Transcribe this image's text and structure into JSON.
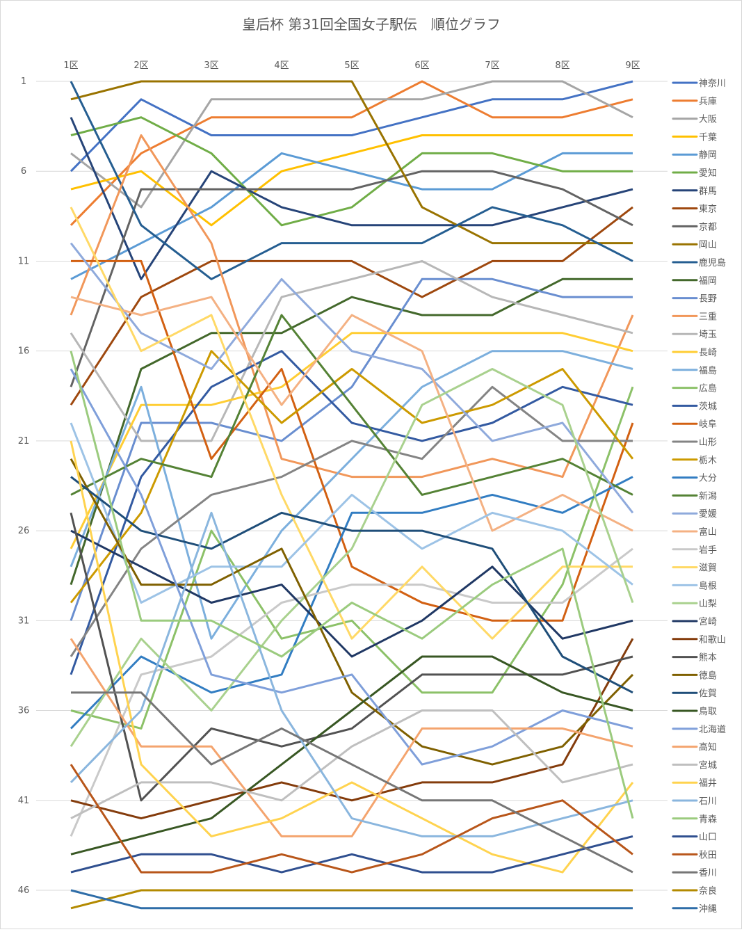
{
  "chart_data": {
    "type": "line",
    "title": "皇后杯 第31回全国女子駅伝　順位グラフ",
    "xlabel": "",
    "ylabel": "",
    "categories": [
      "1区",
      "2区",
      "3区",
      "4区",
      "5区",
      "6区",
      "7区",
      "8区",
      "9区"
    ],
    "y_ticks": [
      1,
      6,
      11,
      16,
      21,
      26,
      31,
      36,
      41,
      46
    ],
    "ylim": [
      1,
      47
    ],
    "y_reversed": true,
    "grid": true,
    "legend_position": "right",
    "series": [
      {
        "name": "神奈川",
        "color": "#4472C4",
        "values": [
          6,
          2,
          4,
          4,
          4,
          3,
          2,
          2,
          1
        ]
      },
      {
        "name": "兵庫",
        "color": "#ED7D31",
        "values": [
          9,
          5,
          3,
          3,
          3,
          1,
          3,
          3,
          2
        ]
      },
      {
        "name": "大阪",
        "color": "#A5A5A5",
        "values": [
          5,
          8,
          2,
          2,
          2,
          2,
          1,
          1,
          3
        ]
      },
      {
        "name": "千葉",
        "color": "#FFC000",
        "values": [
          7,
          6,
          9,
          6,
          5,
          4,
          4,
          4,
          4
        ]
      },
      {
        "name": "静岡",
        "color": "#5B9BD5",
        "values": [
          12,
          10,
          8,
          5,
          6,
          7,
          7,
          5,
          5
        ]
      },
      {
        "name": "愛知",
        "color": "#70AD47",
        "values": [
          4,
          3,
          5,
          9,
          8,
          5,
          5,
          6,
          6
        ]
      },
      {
        "name": "群馬",
        "color": "#264478",
        "values": [
          3,
          12,
          6,
          8,
          9,
          9,
          9,
          8,
          7
        ]
      },
      {
        "name": "東京",
        "color": "#9E480E",
        "values": [
          19,
          13,
          11,
          11,
          11,
          13,
          11,
          11,
          8
        ]
      },
      {
        "name": "京都",
        "color": "#636363",
        "values": [
          18,
          7,
          7,
          7,
          7,
          6,
          6,
          7,
          9
        ]
      },
      {
        "name": "岡山",
        "color": "#997300",
        "values": [
          2,
          1,
          1,
          1,
          1,
          8,
          10,
          10,
          10
        ]
      },
      {
        "name": "鹿児島",
        "color": "#255E91",
        "values": [
          1,
          9,
          12,
          10,
          10,
          10,
          8,
          9,
          11
        ]
      },
      {
        "name": "福岡",
        "color": "#43682B",
        "values": [
          29,
          17,
          15,
          15,
          13,
          14,
          14,
          12,
          12
        ]
      },
      {
        "name": "長野",
        "color": "#698ED0",
        "values": [
          31,
          20,
          20,
          21,
          18,
          12,
          12,
          13,
          13
        ]
      },
      {
        "name": "三重",
        "color": "#F1975A",
        "values": [
          14,
          4,
          10,
          22,
          23,
          23,
          22,
          23,
          14
        ]
      },
      {
        "name": "埼玉",
        "color": "#B7B7B7",
        "values": [
          15,
          21,
          21,
          13,
          12,
          11,
          13,
          14,
          15
        ]
      },
      {
        "name": "長崎",
        "color": "#FFCD33",
        "values": [
          27,
          19,
          19,
          18,
          15,
          15,
          15,
          15,
          16
        ]
      },
      {
        "name": "福島",
        "color": "#7CAFDD",
        "values": [
          28,
          18,
          32,
          26,
          22,
          18,
          16,
          16,
          17
        ]
      },
      {
        "name": "広島",
        "color": "#8CC168",
        "values": [
          36,
          37,
          26,
          32,
          31,
          35,
          35,
          29,
          18
        ]
      },
      {
        "name": "茨城",
        "color": "#335AA1",
        "values": [
          34,
          23,
          18,
          16,
          20,
          21,
          20,
          18,
          19
        ]
      },
      {
        "name": "岐阜",
        "color": "#D26012",
        "values": [
          11,
          11,
          22,
          17,
          28,
          30,
          31,
          31,
          20
        ]
      },
      {
        "name": "山形",
        "color": "#848484",
        "values": [
          33,
          27,
          24,
          23,
          21,
          22,
          18,
          21,
          21
        ]
      },
      {
        "name": "栃木",
        "color": "#CC9A00",
        "values": [
          30,
          25,
          16,
          20,
          17,
          20,
          19,
          17,
          22
        ]
      },
      {
        "name": "大分",
        "color": "#327DC2",
        "values": [
          37,
          33,
          35,
          34,
          25,
          25,
          24,
          25,
          23
        ]
      },
      {
        "name": "新潟",
        "color": "#548235",
        "values": [
          24,
          22,
          23,
          14,
          19,
          24,
          23,
          22,
          24
        ]
      },
      {
        "name": "愛媛",
        "color": "#8FAADC",
        "values": [
          10,
          15,
          17,
          12,
          16,
          17,
          21,
          20,
          25
        ]
      },
      {
        "name": "富山",
        "color": "#F4B183",
        "values": [
          13,
          14,
          13,
          19,
          14,
          16,
          26,
          24,
          26
        ]
      },
      {
        "name": "岩手",
        "color": "#C9C9C9",
        "values": [
          43,
          34,
          33,
          30,
          29,
          29,
          30,
          30,
          27
        ]
      },
      {
        "name": "滋賀",
        "color": "#FFD966",
        "values": [
          8,
          16,
          14,
          24,
          32,
          28,
          32,
          28,
          28
        ]
      },
      {
        "name": "島根",
        "color": "#9DC3E6",
        "values": [
          20,
          30,
          28,
          28,
          24,
          27,
          25,
          26,
          29
        ]
      },
      {
        "name": "山梨",
        "color": "#A9D18E",
        "values": [
          38,
          32,
          36,
          31,
          27,
          19,
          17,
          19,
          30
        ]
      },
      {
        "name": "宮崎",
        "color": "#203864",
        "values": [
          26,
          28,
          30,
          29,
          33,
          31,
          28,
          32,
          31
        ]
      },
      {
        "name": "和歌山",
        "color": "#843C0C",
        "values": [
          41,
          42,
          41,
          40,
          41,
          40,
          40,
          39,
          32
        ]
      },
      {
        "name": "熊本",
        "color": "#525252",
        "values": [
          25,
          41,
          37,
          38,
          37,
          34,
          34,
          34,
          33
        ]
      },
      {
        "name": "徳島",
        "color": "#7F6000",
        "values": [
          22,
          29,
          29,
          27,
          35,
          38,
          39,
          38,
          34
        ]
      },
      {
        "name": "佐賀",
        "color": "#1F4E79",
        "values": [
          23,
          26,
          27,
          25,
          26,
          26,
          27,
          33,
          35
        ]
      },
      {
        "name": "鳥取",
        "color": "#385723",
        "values": [
          44,
          43,
          42,
          39,
          36,
          33,
          33,
          35,
          36
        ]
      },
      {
        "name": "北海道",
        "color": "#7F9FDA",
        "values": [
          17,
          24,
          34,
          35,
          34,
          39,
          38,
          36,
          37
        ]
      },
      {
        "name": "高知",
        "color": "#F4A46E",
        "values": [
          32,
          38,
          38,
          43,
          43,
          37,
          37,
          37,
          38
        ]
      },
      {
        "name": "宮城",
        "color": "#BFBFBF",
        "values": [
          42,
          40,
          40,
          41,
          38,
          36,
          36,
          40,
          39
        ]
      },
      {
        "name": "福井",
        "color": "#FFD34F",
        "values": [
          21,
          39,
          43,
          42,
          40,
          42,
          44,
          45,
          40
        ]
      },
      {
        "name": "石川",
        "color": "#8AB6DE",
        "values": [
          40,
          36,
          25,
          36,
          42,
          43,
          43,
          42,
          41
        ]
      },
      {
        "name": "青森",
        "color": "#9BCB7E",
        "values": [
          16,
          31,
          31,
          33,
          30,
          32,
          29,
          27,
          42
        ]
      },
      {
        "name": "山口",
        "color": "#2F4F8F",
        "values": [
          45,
          44,
          44,
          45,
          44,
          45,
          45,
          44,
          43
        ]
      },
      {
        "name": "秋田",
        "color": "#B8561A",
        "values": [
          39,
          45,
          45,
          44,
          45,
          44,
          42,
          41,
          44
        ]
      },
      {
        "name": "香川",
        "color": "#767676",
        "values": [
          35,
          35,
          39,
          37,
          39,
          41,
          41,
          43,
          45
        ]
      },
      {
        "name": "奈良",
        "color": "#B38A00",
        "values": [
          47,
          46,
          46,
          46,
          46,
          46,
          46,
          46,
          46
        ]
      },
      {
        "name": "沖縄",
        "color": "#2E6DA8",
        "values": [
          46,
          47,
          47,
          47,
          47,
          47,
          47,
          47,
          47
        ]
      }
    ]
  }
}
